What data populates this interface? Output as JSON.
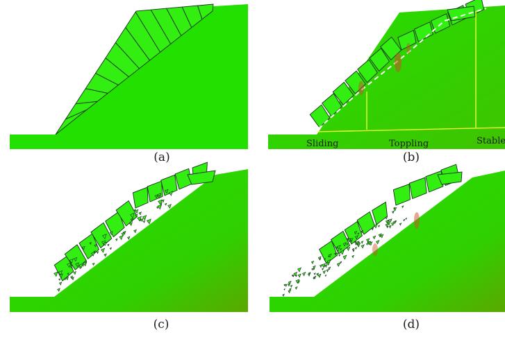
{
  "panels": [
    {
      "id": "a",
      "label": "(a)",
      "state": "initial jointed slope"
    },
    {
      "id": "b",
      "label": "(b)",
      "state": "failure initiation",
      "zones": [
        "Sliding",
        "Toppling",
        "Stable"
      ]
    },
    {
      "id": "c",
      "label": "(c)",
      "state": "progressive failure"
    },
    {
      "id": "d",
      "label": "(d)",
      "state": "final debris"
    }
  ],
  "colors": {
    "rock": "#22e000",
    "block": "#33ee11",
    "joint": "#15301a",
    "zone_line": "#ffff33",
    "crack": "#ffffff",
    "stress": "#c8502a"
  }
}
